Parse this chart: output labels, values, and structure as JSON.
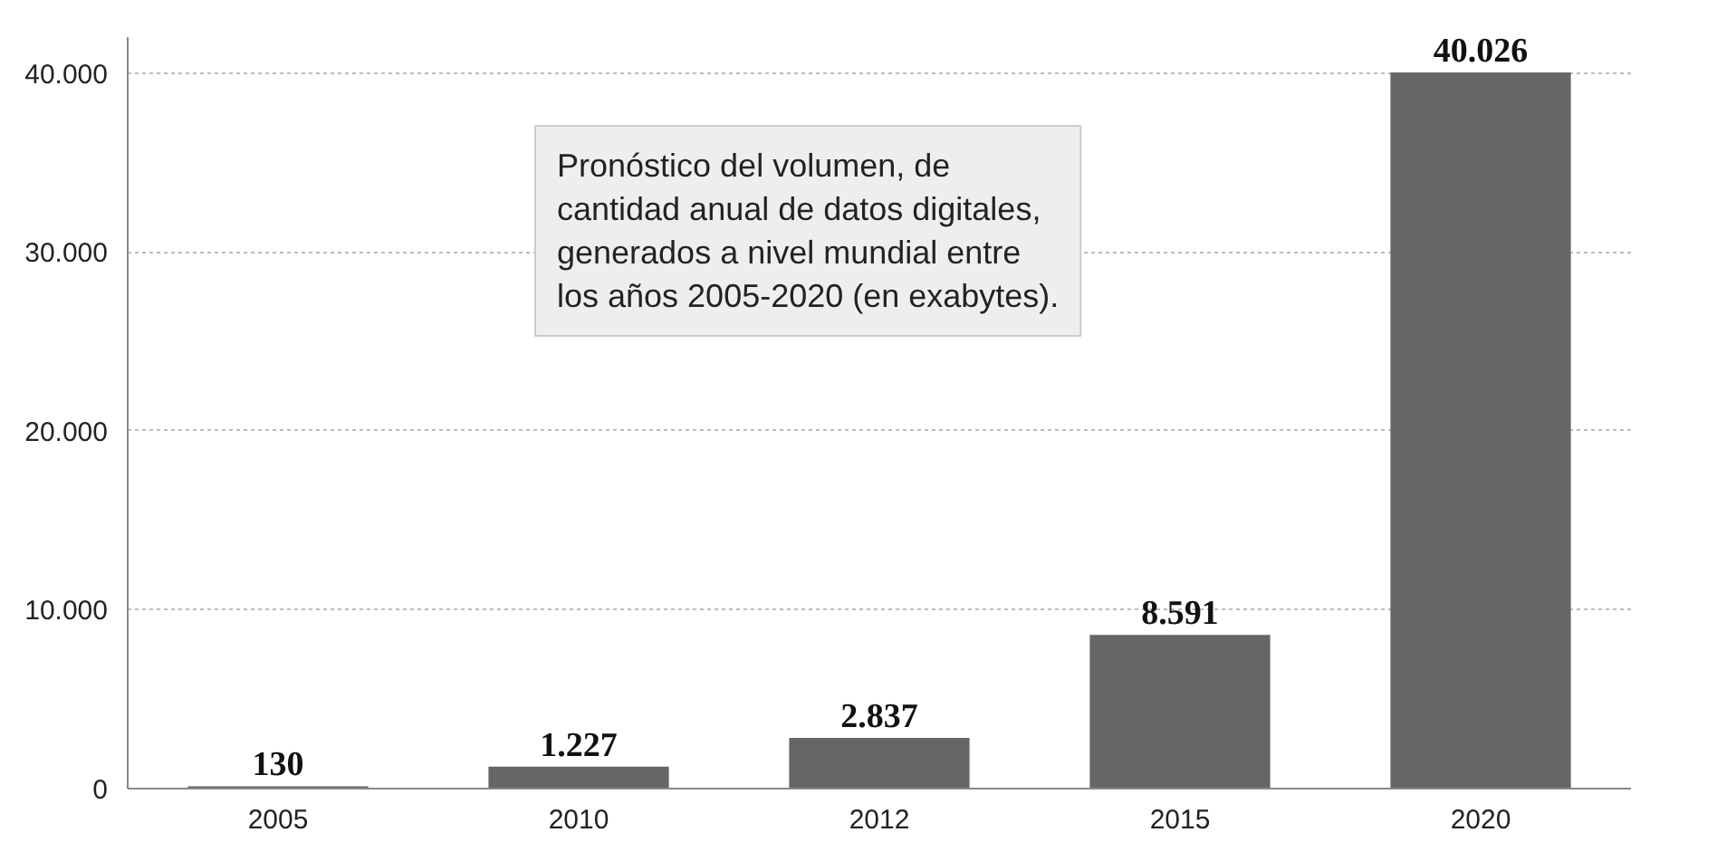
{
  "chart_data": {
    "type": "bar",
    "categories": [
      "2005",
      "2010",
      "2012",
      "2015",
      "2020"
    ],
    "values": [
      130,
      1227,
      2837,
      8591,
      40026
    ],
    "value_labels": [
      "130",
      "1.227",
      "2.837",
      "8.591",
      "40.026"
    ],
    "color": "#666666",
    "ylim": [
      0,
      42000
    ],
    "yticks": [
      0,
      {
        "value": 10000,
        "label": "10.000"
      },
      {
        "value": 20000,
        "label": "20.000"
      },
      {
        "value": 30000,
        "label": "30.000"
      },
      {
        "value": 40000,
        "label": "40.000"
      }
    ],
    "grid": "y",
    "annotations": [
      "Pronóstico del volumen, de\ncantidad anual de datos digitales,\ngenerados a nivel mundial entre\nlos años 2005-2020 (en exabytes)."
    ]
  }
}
